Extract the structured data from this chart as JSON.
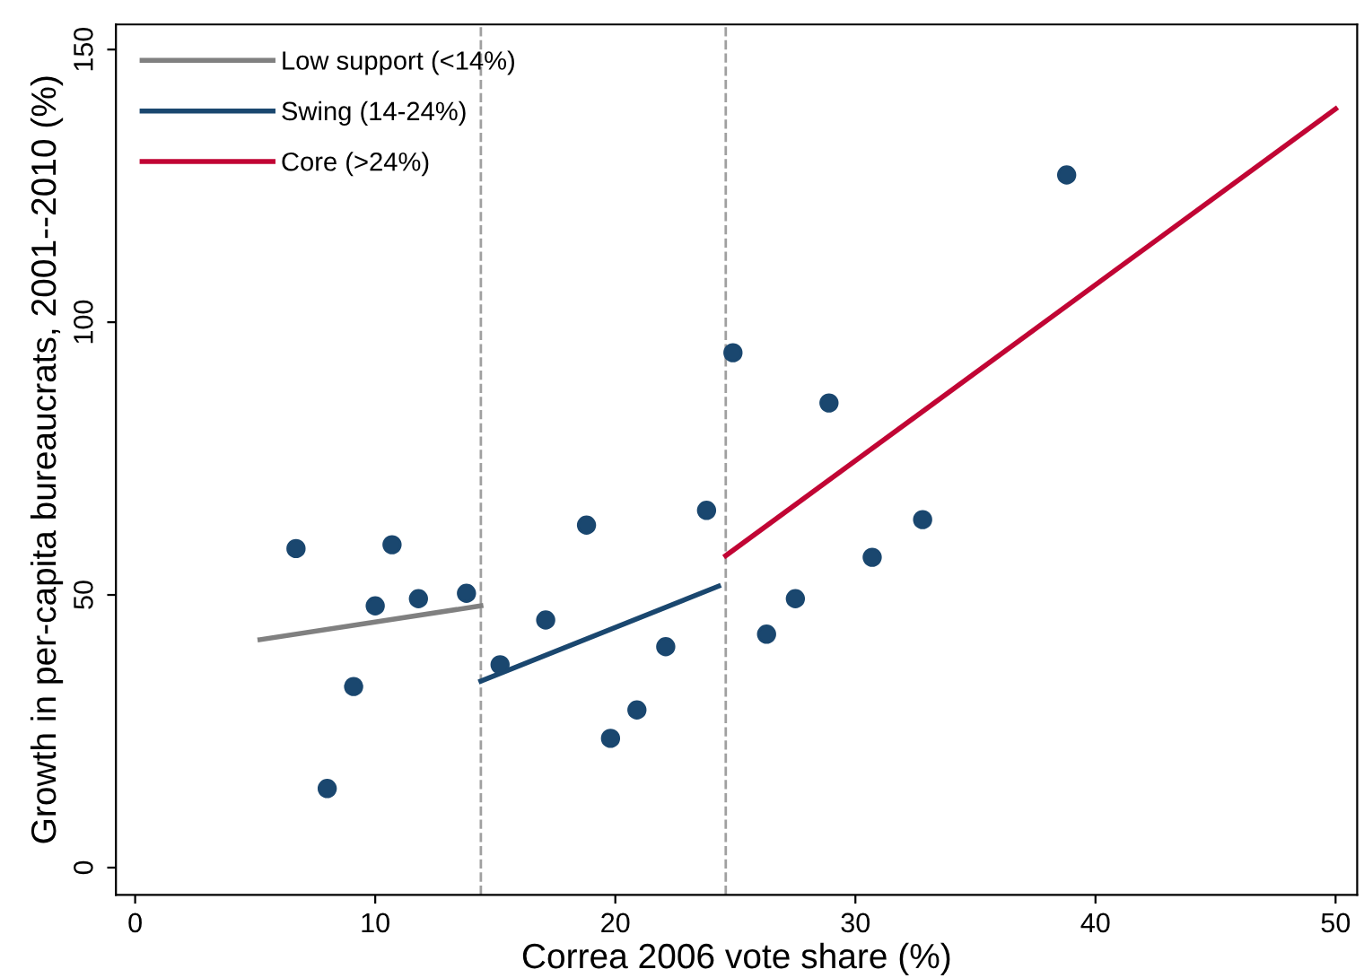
{
  "chart_data": {
    "type": "scatter",
    "xlabel": "Correa 2006 vote share (%)",
    "ylabel": "Growth in per-capita bureaucrats, 2001--2010 (%)",
    "xlim": [
      -0.8,
      50.9
    ],
    "ylim": [
      -5,
      154.6
    ],
    "xticks": [
      0,
      10,
      20,
      30,
      40,
      50
    ],
    "yticks": [
      0,
      50,
      100,
      150
    ],
    "grid": false,
    "legend": "top left",
    "series": [
      {
        "color": "#1a476f",
        "marker": "circle",
        "x": [
          6.7,
          8.0,
          9.1,
          10.0,
          10.7,
          11.8,
          13.8,
          15.2,
          17.1,
          18.8,
          19.8,
          20.9,
          22.1,
          23.8,
          24.9,
          26.3,
          27.5,
          28.9,
          30.7,
          32.8,
          38.8
        ],
        "values": [
          58.5,
          14.5,
          33.2,
          48,
          59.2,
          49.3,
          50.3,
          37.2,
          45.4,
          62.8,
          23.7,
          28.9,
          40.5,
          65.5,
          94.4,
          42.8,
          49.3,
          85.2,
          56.9,
          63.8,
          127
        ]
      },
      {
        "type": "line",
        "name": "Low support (<14%)",
        "color": "#808080",
        "x": [
          5.2,
          14.4
        ],
        "values": [
          41.8,
          48.0
        ]
      },
      {
        "type": "line",
        "name": "Swing (14-24%)",
        "color": "#1a476f",
        "x": [
          14.4,
          24.3
        ],
        "values": [
          34.2,
          51.6
        ]
      },
      {
        "type": "line",
        "name": "Core (>24%)",
        "color": "#c10534",
        "x": [
          24.6,
          50
        ],
        "values": [
          57.2,
          139.1
        ]
      }
    ],
    "ref_lines": [
      {
        "axis": "x",
        "value": 14.4,
        "color": "#a0a0a0",
        "line_style": "dashed"
      },
      {
        "axis": "x",
        "value": 24.6,
        "color": "#a0a0a0",
        "line_style": "dashed"
      }
    ]
  }
}
